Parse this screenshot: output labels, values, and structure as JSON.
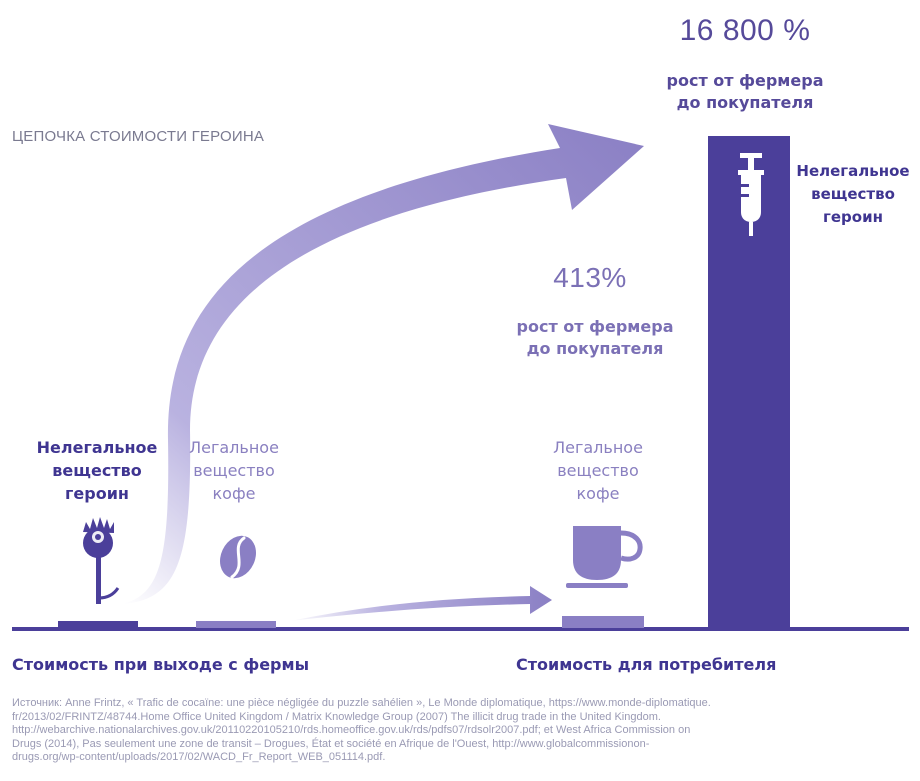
{
  "title": "ЦЕПОЧКА СТОИМОСТИ ГЕРОИНА",
  "heroin_growth": {
    "percent": "16 800 %",
    "caption_line1": "рост от фермера",
    "caption_line2": "до покупателя"
  },
  "coffee_growth": {
    "percent": "413%",
    "caption_line1": "рост от фермера",
    "caption_line2": "до покупателя"
  },
  "farm": {
    "heroin_line1": "Нелегальное",
    "heroin_line2": "вещество",
    "heroin_line3": "героин",
    "coffee_line1": "Легальное",
    "coffee_line2": "вещество",
    "coffee_line3": "кофе"
  },
  "consumer": {
    "coffee_line1": "Легальное",
    "coffee_line2": "вещество",
    "coffee_line3": "кофе",
    "heroin_line1": "Нелегальное",
    "heroin_line2": "вещество",
    "heroin_line3": "героин"
  },
  "axis": {
    "farm_label": "Стоимость при выходе с фермы",
    "consumer_label": "Стоимость для потребителя"
  },
  "source": {
    "line1": "Источник: Anne Frintz, « Trafic de cocaïne: une pièce négligée du puzzle sahélien », Le Monde diplomatique, https://www.monde-diplomatique.",
    "line2": "fr/2013/02/FRINTZ/48744.Home Office United Kingdom / Matrix Knowledge Group (2007) The illicit drug trade in the United Kingdom.",
    "line3": "http://webarchive.nationalarchives.gov.uk/20110220105210/rds.homeoffice.gov.uk/rds/pdfs07/rdsolr2007.pdf; et West Africa Commission on",
    "line4": "Drugs (2014), Pas seulement une zone de transit – Drogues, État et société en Afrique de l'Ouest, http://www.globalcommissionon-",
    "line5": "drugs.org/wp-content/uploads/2017/02/WACD_Fr_Report_WEB_051114.pdf."
  },
  "colors": {
    "dark_purple": "#4b3f9a",
    "mid_purple": "#5b4fa8",
    "light_purple": "#8a7fc4",
    "lighter_purple": "#9d94cf"
  },
  "icons": [
    "poppy-icon",
    "coffee-bean-icon",
    "coffee-cup-icon",
    "syringe-icon"
  ]
}
